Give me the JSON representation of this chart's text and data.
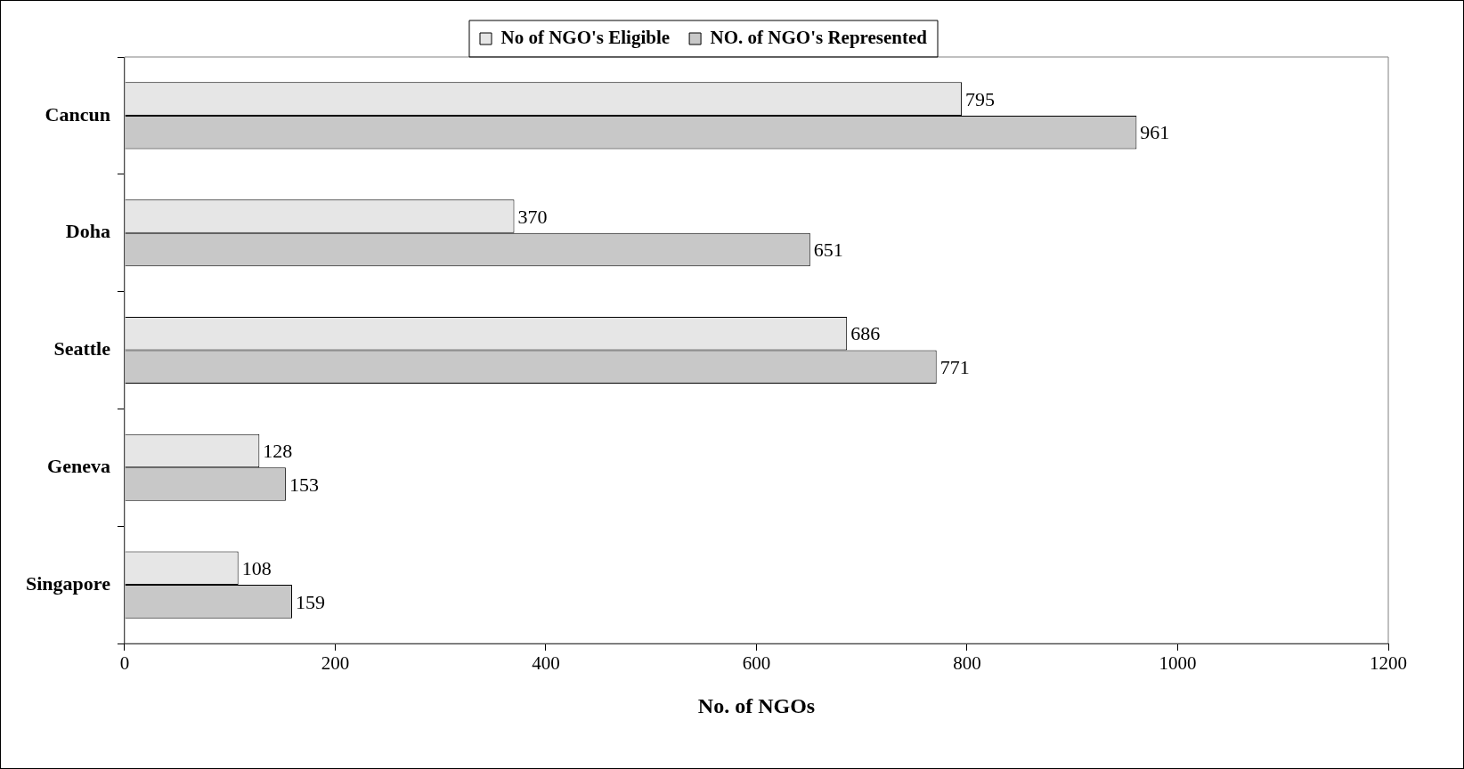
{
  "chart_data": {
    "type": "bar",
    "orientation": "horizontal",
    "xlabel": "No. of NGOs",
    "categories": [
      "Cancun",
      "Doha",
      "Seattle",
      "Geneva",
      "Singapore"
    ],
    "series": [
      {
        "name": "No of NGO's Eligible",
        "color": "#e6e6e6",
        "values": [
          795,
          370,
          686,
          128,
          108
        ]
      },
      {
        "name": "NO. of NGO's Represented",
        "color": "#c8c8c8",
        "values": [
          961,
          651,
          771,
          153,
          159
        ]
      }
    ],
    "xlim": [
      0,
      1200
    ],
    "xticks": [
      0,
      200,
      400,
      600,
      800,
      1000,
      1200
    ],
    "grid": false,
    "legend": "top",
    "data_labels": true
  }
}
